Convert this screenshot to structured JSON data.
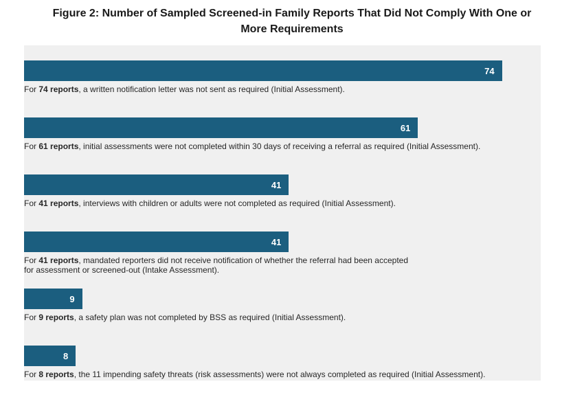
{
  "chart_data": {
    "type": "bar",
    "orientation": "horizontal",
    "title": "Figure 2: Number of Sampled Screened-in Family Reports That Did Not Comply With One or\nMore Requirements",
    "xlabel": "",
    "ylabel": "",
    "xlim": [
      0,
      80
    ],
    "grid": false,
    "legend": "none",
    "bar_color": "#1B5E7F",
    "plot_background": "#F0F0F0",
    "value_label_color": "#FFFFFF",
    "values": [
      74,
      61,
      41,
      41,
      9,
      8
    ],
    "items": [
      {
        "value": 74,
        "value_label": "74",
        "label_prefix": "For ",
        "label_bold": "74 reports",
        "label_rest": ", a written notification letter was not sent as required (Initial Assessment)."
      },
      {
        "value": 61,
        "value_label": "61",
        "label_prefix": "For ",
        "label_bold": "61 reports",
        "label_rest": ", initial assessments were not completed within 30 days of receiving a referral as required (Initial Assessment)."
      },
      {
        "value": 41,
        "value_label": "41",
        "label_prefix": "For ",
        "label_bold": "41 reports",
        "label_rest": ", interviews with children or adults were not completed as required (Initial Assessment)."
      },
      {
        "value": 41,
        "value_label": "41",
        "label_prefix": "For ",
        "label_bold": "41 reports",
        "label_rest": ", mandated reporters did not receive notification of whether the referral had been accepted\nfor assessment or screened-out (Intake Assessment)."
      },
      {
        "value": 9,
        "value_label": "9",
        "label_prefix": "For ",
        "label_bold": "9 reports",
        "label_rest": ", a safety plan was not completed by BSS as required (Initial Assessment)."
      },
      {
        "value": 8,
        "value_label": "8",
        "label_prefix": "For ",
        "label_bold": "8 reports",
        "label_rest": ", the 11 impending safety threats (risk assessments) were not always completed as required (Initial Assessment)."
      }
    ]
  }
}
